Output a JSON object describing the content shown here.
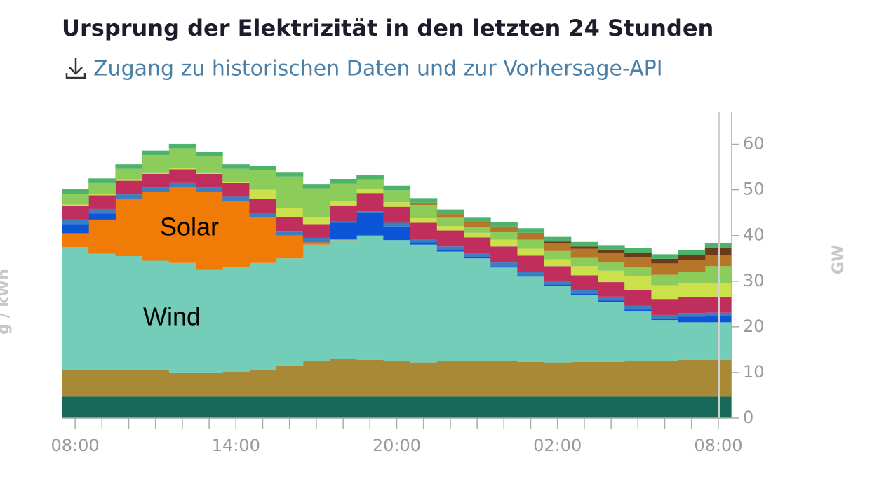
{
  "header": {
    "title": "Ursprung der Elektrizität in den letzten 24 Stunden",
    "link": "Zugang zu historischen Daten und zur Vorhersage-API"
  },
  "chart_data": {
    "type": "area",
    "step": true,
    "y_label": "GW",
    "y2_label": "g / kWh",
    "categories": [
      "08:00",
      null,
      null,
      null,
      null,
      null,
      "14:00",
      null,
      null,
      null,
      null,
      null,
      "20:00",
      null,
      null,
      null,
      null,
      null,
      "02:00",
      null,
      null,
      null,
      null,
      null,
      "08:00"
    ],
    "ylim": [
      0,
      67
    ],
    "yticks": [
      0,
      10,
      20,
      30,
      40,
      50,
      60
    ],
    "series": [
      {
        "color": "#17695a",
        "values": [
          4.7,
          4.7,
          4.7,
          4.7,
          4.7,
          4.7,
          4.7,
          4.7,
          4.7,
          4.7,
          4.7,
          4.7,
          4.7,
          4.7,
          4.7,
          4.7,
          4.7,
          4.7,
          4.7,
          4.7,
          4.7,
          4.7,
          4.7,
          4.7,
          4.7
        ]
      },
      {
        "color": "#a88a36",
        "values": [
          5.8,
          5.8,
          5.8,
          5.8,
          5.3,
          5.3,
          5.5,
          5.8,
          6.8,
          7.8,
          8.3,
          8.1,
          7.8,
          7.5,
          7.8,
          7.8,
          7.8,
          7.6,
          7.5,
          7.6,
          7.6,
          7.8,
          7.9,
          8.1,
          8.1
        ]
      },
      {
        "name": "Wind",
        "color": "#74cdb9",
        "values": [
          27,
          25.5,
          25,
          24,
          24,
          22.5,
          22.8,
          23.5,
          23.5,
          25.5,
          26,
          27.2,
          26.5,
          25.8,
          24,
          22.5,
          20.5,
          18.7,
          16.8,
          14.7,
          13.2,
          11,
          8.9,
          8.2,
          8.2
        ]
      },
      {
        "name": "Solar",
        "color": "#f07b06",
        "values": [
          3,
          7.5,
          12.5,
          15,
          16.5,
          17,
          14.5,
          10,
          5,
          0.5,
          0.3,
          0,
          0,
          0,
          0,
          0,
          0,
          0,
          0,
          0,
          0,
          0,
          0,
          0,
          0
        ]
      },
      {
        "color": "#0b55d6",
        "values": [
          2,
          1.3,
          0,
          0,
          0,
          0,
          0,
          0,
          0,
          0,
          3.5,
          5,
          3,
          0.5,
          0.3,
          0.3,
          0.3,
          0.3,
          0.3,
          0.3,
          0.3,
          0.3,
          0.3,
          1.2,
          1.3
        ]
      },
      {
        "color": "#3a7fc1",
        "values": [
          1,
          1,
          1,
          1,
          1,
          1,
          1,
          1,
          1,
          1,
          0.3,
          0.3,
          0.8,
          0.8,
          0.8,
          0.8,
          0.8,
          0.8,
          0.8,
          0.8,
          0.8,
          0.8,
          0.8,
          0.8,
          0.8
        ]
      },
      {
        "color": "#c02e5e",
        "values": [
          3,
          3,
          3,
          3,
          3,
          3,
          3,
          3,
          3,
          3,
          3.5,
          4,
          3.5,
          3.5,
          3.5,
          3.5,
          3.5,
          3.5,
          3.2,
          3.2,
          3.2,
          3.5,
          3.5,
          3.5,
          3.5
        ]
      },
      {
        "color": "#cbe04b",
        "values": [
          0.3,
          0.3,
          0.3,
          0.3,
          0.3,
          0.3,
          0.3,
          2,
          2,
          1.5,
          1,
          0.8,
          1,
          1,
          1,
          1,
          1.5,
          1.5,
          1.5,
          2,
          2.5,
          3,
          3,
          3,
          3
        ]
      },
      {
        "color": "#8ccc5a",
        "values": [
          2.3,
          2.4,
          2.3,
          3.8,
          4.3,
          3.5,
          2.8,
          4.3,
          6.9,
          6.3,
          3.8,
          2.2,
          2.6,
          2.9,
          1.8,
          1.3,
          1.7,
          2,
          1.8,
          1.8,
          1.8,
          1.9,
          2.3,
          2.6,
          3.7
        ]
      },
      {
        "color": "#b5762a",
        "values": [
          0,
          0,
          0,
          0,
          0,
          0,
          0,
          0,
          0,
          0,
          0,
          0,
          0,
          0.5,
          0.8,
          1,
          1.2,
          1.5,
          1.8,
          2,
          2,
          2.2,
          2.5,
          2.5,
          2.5
        ]
      },
      {
        "color": "#6b3a1a",
        "values": [
          0,
          0,
          0,
          0,
          0,
          0,
          0,
          0,
          0,
          0,
          0,
          0,
          0,
          0,
          0,
          0,
          0,
          0,
          0.3,
          0.5,
          0.8,
          1,
          1,
          1.2,
          1.5
        ]
      },
      {
        "color": "#4db36a",
        "values": [
          1,
          1,
          1,
          1,
          1,
          1,
          1,
          1,
          1,
          1,
          1,
          1,
          1,
          1,
          1,
          1,
          1,
          1,
          1,
          1,
          1,
          1,
          1,
          1,
          1
        ]
      }
    ]
  }
}
